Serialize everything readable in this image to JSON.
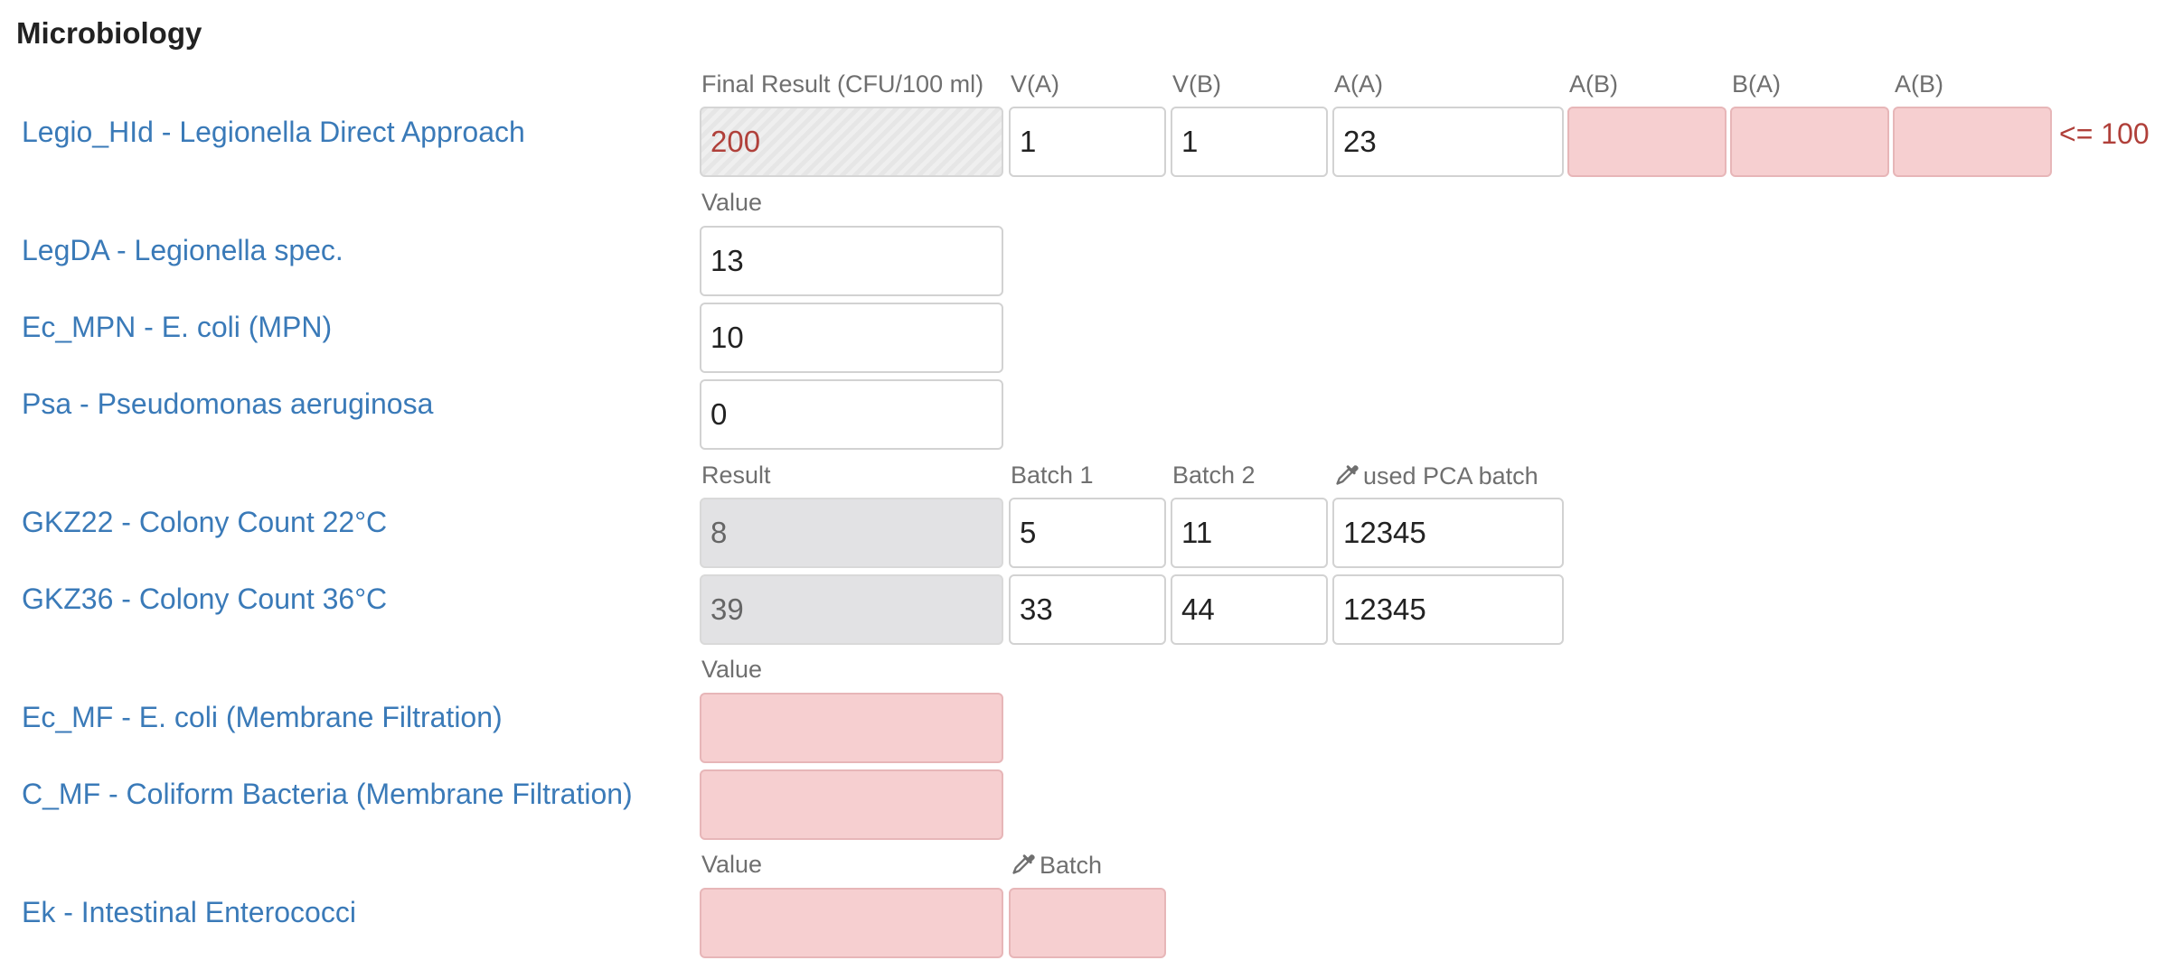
{
  "section_title": "Microbiology",
  "legio": {
    "label": "Legio_HId - Legionella Direct Approach",
    "headers": [
      "Final Result (CFU/100 ml)",
      "V(A)",
      "V(B)",
      "A(A)",
      "A(B)",
      "B(A)",
      "A(B)"
    ],
    "values": [
      "200",
      "1",
      "1",
      "23",
      "",
      "",
      ""
    ],
    "limit": "<= 100"
  },
  "value_header_1": "Value",
  "simple_rows": [
    {
      "label": "LegDA - Legionella spec.",
      "value": "13"
    },
    {
      "label": "Ec_MPN - E. coli (MPN)",
      "value": "10"
    },
    {
      "label": "Psa - Pseudomonas aeruginosa",
      "value": "0"
    }
  ],
  "colony": {
    "headers": {
      "result": "Result",
      "batch1": "Batch 1",
      "batch2": "Batch 2",
      "pca": "used PCA batch"
    },
    "rows": [
      {
        "label": "GKZ22 - Colony Count 22°C",
        "result": "8",
        "batch1": "5",
        "batch2": "11",
        "pca": "12345"
      },
      {
        "label": "GKZ36 - Colony Count 36°C",
        "result": "39",
        "batch1": "33",
        "batch2": "44",
        "pca": "12345"
      }
    ]
  },
  "value_header_2": "Value",
  "mf_rows": [
    {
      "label": "Ec_MF - E. coli (Membrane Filtration)",
      "value": ""
    },
    {
      "label": "C_MF - Coliform Bacteria (Membrane Filtration)",
      "value": ""
    }
  ],
  "entero": {
    "value_header": "Value",
    "batch_header": "Batch",
    "label": "Ek - Intestinal Enterococci",
    "value": "",
    "batch": ""
  },
  "icons": {
    "pipette": "pipette-icon"
  },
  "colors": {
    "label": "#3a7ab8",
    "error_bg": "#f6cfd0",
    "limit_text": "#b0403a",
    "readonly_bg": "#e2e2e4"
  }
}
